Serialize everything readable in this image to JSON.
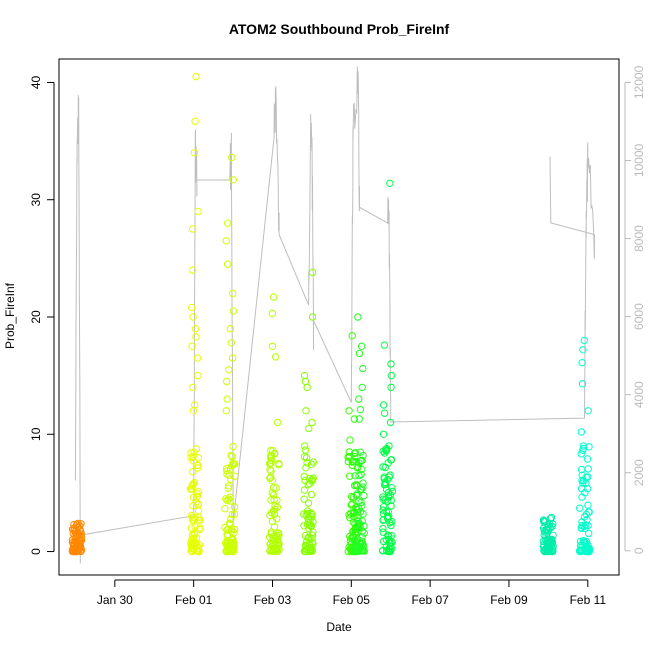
{
  "chart_data": {
    "type": "scatter",
    "title": "ATOM2 Southbound Prob_FireInf",
    "xlabel": "Date",
    "ylabel": "Prob_FireInf",
    "xlim": [
      "2025-01-28T14:00",
      "2025-02-11T19:00"
    ],
    "ylim": [
      -2,
      42
    ],
    "y2lim": [
      -620,
      12600
    ],
    "x_ticks": [
      {
        "date": "2025-01-30",
        "label": "Jan 30"
      },
      {
        "date": "2025-02-01",
        "label": "Feb 01"
      },
      {
        "date": "2025-02-03",
        "label": "Feb 03"
      },
      {
        "date": "2025-02-05",
        "label": "Feb 05"
      },
      {
        "date": "2025-02-07",
        "label": "Feb 07"
      },
      {
        "date": "2025-02-09",
        "label": "Feb 09"
      },
      {
        "date": "2025-02-11",
        "label": "Feb 11"
      }
    ],
    "y_ticks": [
      0,
      10,
      20,
      30,
      40
    ],
    "y2_ticks": [
      0,
      2000,
      4000,
      6000,
      8000,
      10000,
      12000
    ],
    "colors": {
      "line": "#bebebe",
      "axis_right": "#bbbbbb"
    },
    "clusters": [
      {
        "date": "2025-01-29T01:00",
        "color": "#ff8800",
        "high_points": [
          2.4,
          2.0,
          1.7
        ]
      },
      {
        "date": "2025-02-01T01:00",
        "color": "#e6ff00",
        "high_points": [
          40.5,
          36.7,
          34.0,
          29.0,
          27.5,
          24.0,
          20.8,
          20.0,
          19.0,
          18.3,
          17.5,
          16.5,
          15.0,
          14.0,
          12.5,
          12.0
        ]
      },
      {
        "date": "2025-02-01T22:00",
        "color": "#ccff00",
        "high_points": [
          33.6,
          31.7,
          28.0,
          26.5,
          24.5,
          22.0,
          20.5,
          19.0,
          17.8,
          16.5,
          15.5,
          14.5,
          13.0,
          12.0
        ]
      },
      {
        "date": "2025-02-03T01:00",
        "color": "#b3ff00",
        "high_points": [
          21.7,
          20.3,
          17.5,
          16.6,
          11.0,
          8.6,
          5.0
        ]
      },
      {
        "date": "2025-02-03T22:00",
        "color": "#88ff00",
        "high_points": [
          23.8,
          20.0,
          15.0,
          14.5,
          14.0,
          12.0,
          11.0,
          10.5,
          9.0
        ]
      },
      {
        "date": "2025-02-05T01:00",
        "color": "#33ff00",
        "high_points": [
          18.4,
          12.0,
          11.3,
          9.5
        ]
      },
      {
        "date": "2025-02-05T05:00",
        "color": "#22ff22",
        "high_points": [
          20.0,
          17.5,
          16.9,
          15.6,
          14.0,
          13.0,
          12.1,
          11.3
        ]
      },
      {
        "date": "2025-02-05T22:00",
        "color": "#00ff44",
        "high_points": [
          31.4,
          17.6,
          16.0,
          15.0,
          14.0,
          12.5,
          11.8,
          11.0,
          10.0,
          9.0
        ]
      },
      {
        "date": "2025-02-10T00:00",
        "color": "#00eeaa",
        "high_points": [
          2.9,
          2.0,
          1.0
        ]
      },
      {
        "date": "2025-02-10T22:00",
        "color": "#00ffcc",
        "high_points": [
          18.0,
          17.2,
          16.1,
          14.3,
          12.0,
          10.2,
          9.0
        ]
      }
    ],
    "line_series": [
      [
        "2025-01-29T00:00",
        1800
      ],
      [
        "2025-01-29T01:00",
        10500
      ],
      [
        "2025-01-29T02:00",
        11200
      ],
      [
        "2025-01-29T03:00",
        400
      ],
      [
        "2025-02-01T00:00",
        900
      ],
      [
        "2025-02-01T01:00",
        10400
      ],
      [
        "2025-02-01T02:00",
        9500
      ],
      [
        "2025-02-01T22:00",
        9500
      ],
      [
        "2025-02-01T23:00",
        10300
      ],
      [
        "2025-02-02T00:00",
        700
      ],
      [
        "2025-02-03T01:00",
        10600
      ],
      [
        "2025-02-03T02:00",
        11900
      ],
      [
        "2025-02-03T04:00",
        8100
      ],
      [
        "2025-02-03T22:00",
        6300
      ],
      [
        "2025-02-03T23:00",
        10400
      ],
      [
        "2025-02-04T00:00",
        10600
      ],
      [
        "2025-02-04T01:00",
        5900
      ],
      [
        "2025-02-05T00:00",
        3800
      ],
      [
        "2025-02-05T01:00",
        10500
      ],
      [
        "2025-02-05T04:00",
        12200
      ],
      [
        "2025-02-05T05:00",
        8800
      ],
      [
        "2025-02-05T22:00",
        8400
      ],
      [
        "2025-02-05T23:00",
        8300
      ],
      [
        "2025-02-06T00:00",
        3300
      ],
      [
        "2025-02-10T22:00",
        3400
      ],
      [
        "2025-02-10T23:00",
        8700
      ],
      [
        "2025-02-11T00:00",
        9800
      ],
      [
        "2025-02-11T04:00",
        8100
      ]
    ],
    "line_extra": [
      [
        "2025-02-10T01:00",
        10100
      ],
      [
        "2025-02-10T01:30",
        8400
      ],
      [
        "2025-02-11T04:00",
        8100
      ]
    ]
  }
}
